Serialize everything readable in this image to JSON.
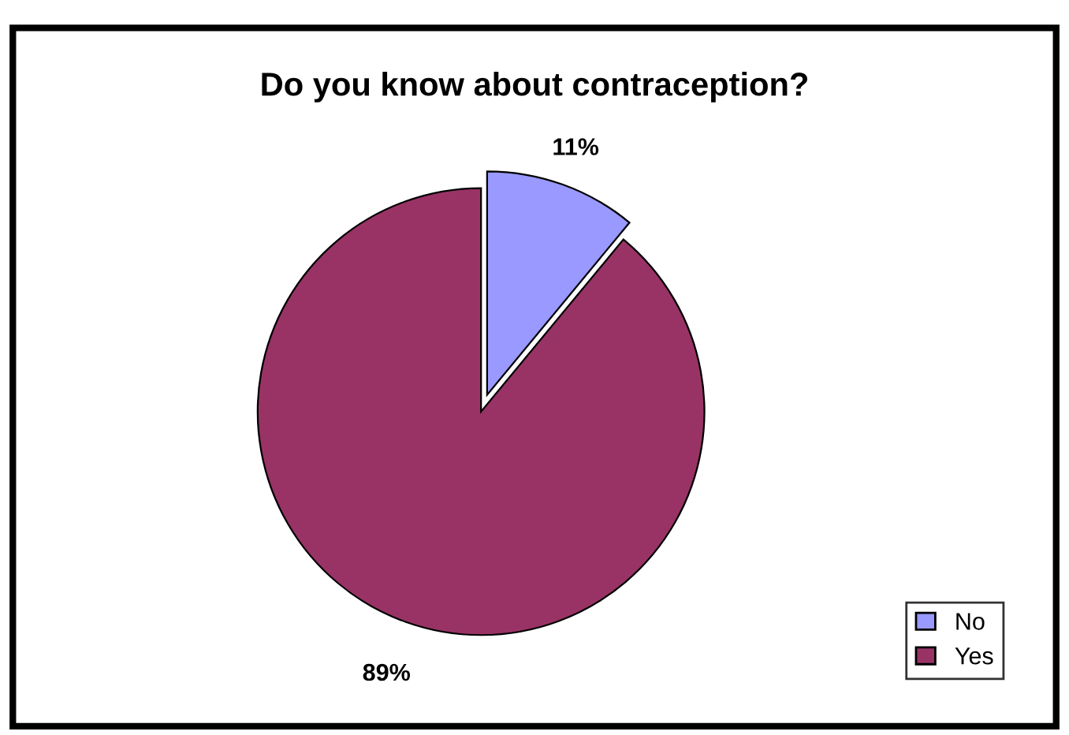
{
  "chart_data": {
    "type": "pie",
    "title": "Do you know about contraception?",
    "categories": [
      "No",
      "Yes"
    ],
    "values": [
      11,
      89
    ],
    "colors": [
      "#9999ff",
      "#993366"
    ],
    "value_labels": [
      "11%",
      "89%"
    ],
    "legend": "bottom right"
  }
}
